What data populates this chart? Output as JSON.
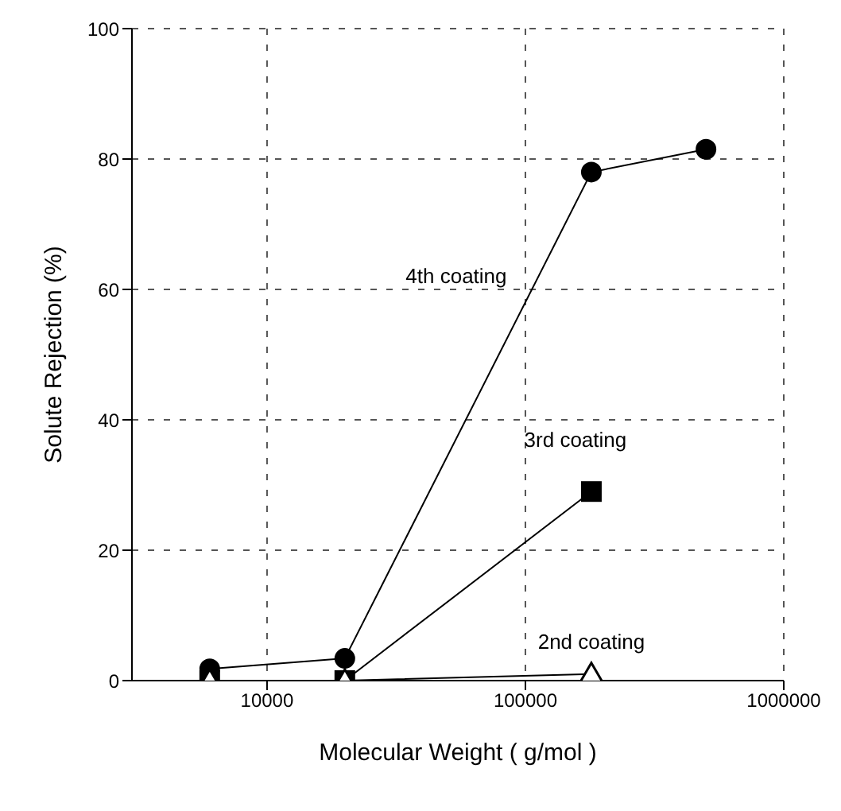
{
  "chart_data": {
    "type": "line",
    "xlabel": "Molecular Weight ( g/mol )",
    "ylabel": "Solute Rejection (%)",
    "log": "x",
    "xlim": [
      3000,
      1000000
    ],
    "xticks": [
      10000,
      100000,
      1000000
    ],
    "ylim": [
      0,
      100
    ],
    "yticks": [
      0,
      20,
      40,
      60,
      80,
      100
    ],
    "grid": true,
    "line_style": "solid",
    "series": [
      {
        "name": "4th coating",
        "color": "#000000",
        "marker": "circle",
        "x": [
          6000,
          20000,
          180000,
          500000
        ],
        "values": [
          1.8,
          3.4,
          78,
          81.5
        ]
      },
      {
        "name": "3rd coating",
        "color": "#000000",
        "marker": "square",
        "x": [
          6000,
          20000,
          180000
        ],
        "values": [
          0,
          0,
          29
        ]
      },
      {
        "name": "2nd coating",
        "color": "#000000",
        "marker": "triangle",
        "x": [
          6000,
          20000,
          180000
        ],
        "values": [
          0,
          0,
          1
        ]
      }
    ]
  }
}
